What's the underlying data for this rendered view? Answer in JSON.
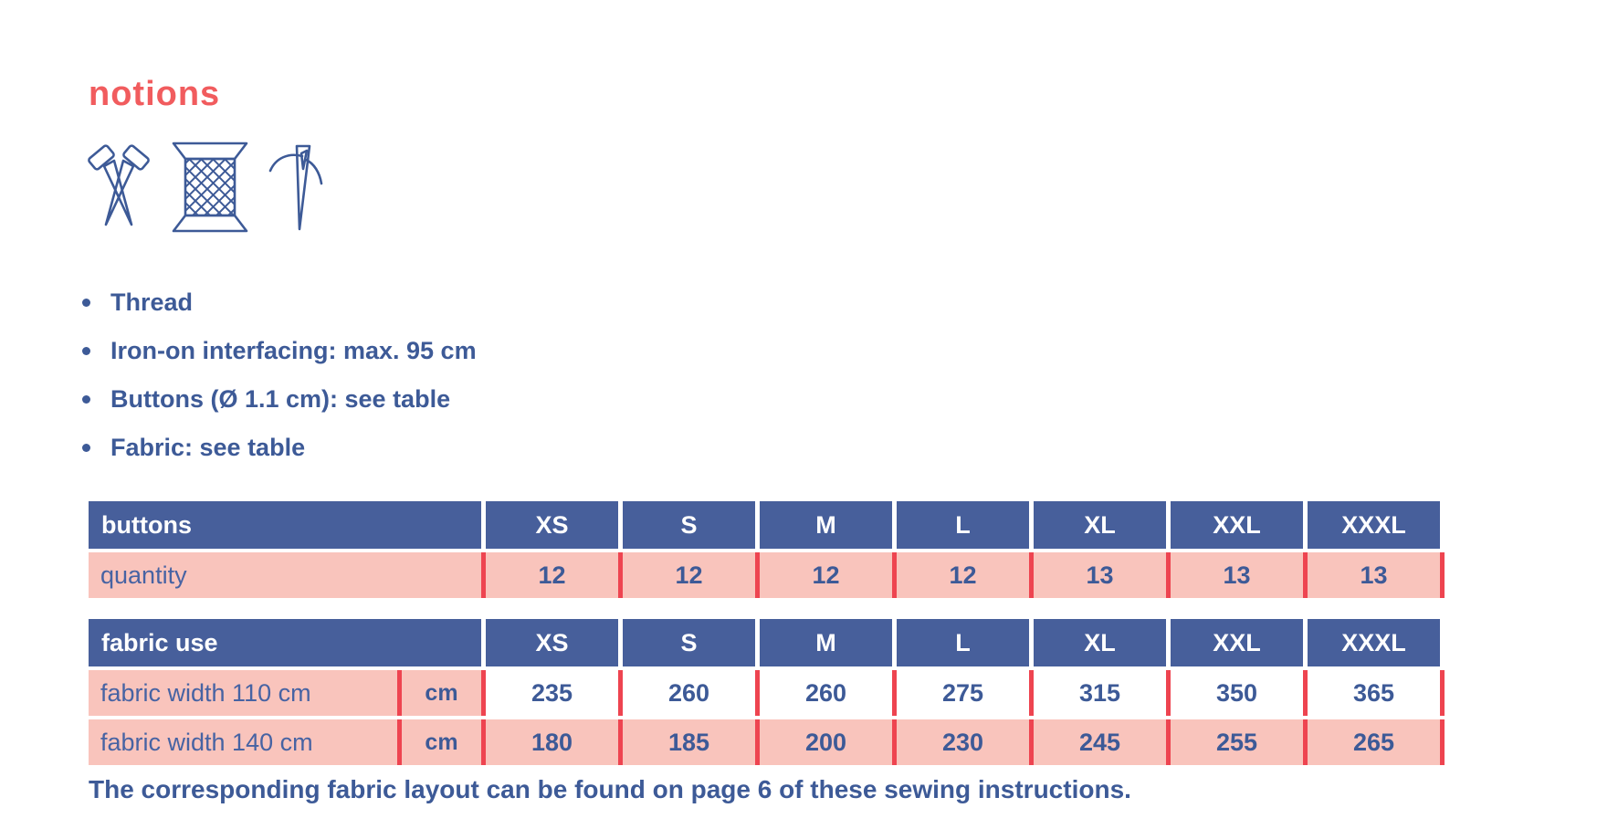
{
  "page": {
    "title": "notions",
    "bullets": [
      "Thread",
      "Iron-on interfacing: max. 95 cm",
      "Buttons (Ø 1.1 cm): see table",
      "Fabric: see table"
    ],
    "footer": "The corresponding fabric layout can be found on page 6 of these sewing instructions."
  },
  "icons": [
    "scissors-icon",
    "thread-spool-icon",
    "needle-icon"
  ],
  "colors": {
    "heading_coral": "#F15C5E",
    "table_header_blue": "#475F9B",
    "text_blue": "#3D5A97",
    "row_pink": "#F9C4BC",
    "separator_red": "#EE4450",
    "icon_blue": "#3D5A97"
  },
  "tables": {
    "buttons": {
      "header_label": "buttons",
      "sizes": [
        "XS",
        "S",
        "M",
        "L",
        "XL",
        "XXL",
        "XXXL"
      ],
      "rows": [
        {
          "label": "quantity",
          "unit": null,
          "values": [
            "12",
            "12",
            "12",
            "12",
            "13",
            "13",
            "13"
          ],
          "values_bg": "pink"
        }
      ]
    },
    "fabric_use": {
      "header_label": "fabric use",
      "sizes": [
        "XS",
        "S",
        "M",
        "L",
        "XL",
        "XXL",
        "XXXL"
      ],
      "rows": [
        {
          "label": "fabric width 110 cm",
          "unit": "cm",
          "values": [
            "235",
            "260",
            "260",
            "275",
            "315",
            "350",
            "365"
          ],
          "values_bg": "white"
        },
        {
          "label": "fabric width 140 cm",
          "unit": "cm",
          "values": [
            "180",
            "185",
            "200",
            "230",
            "245",
            "255",
            "265"
          ],
          "values_bg": "pink"
        }
      ]
    }
  }
}
